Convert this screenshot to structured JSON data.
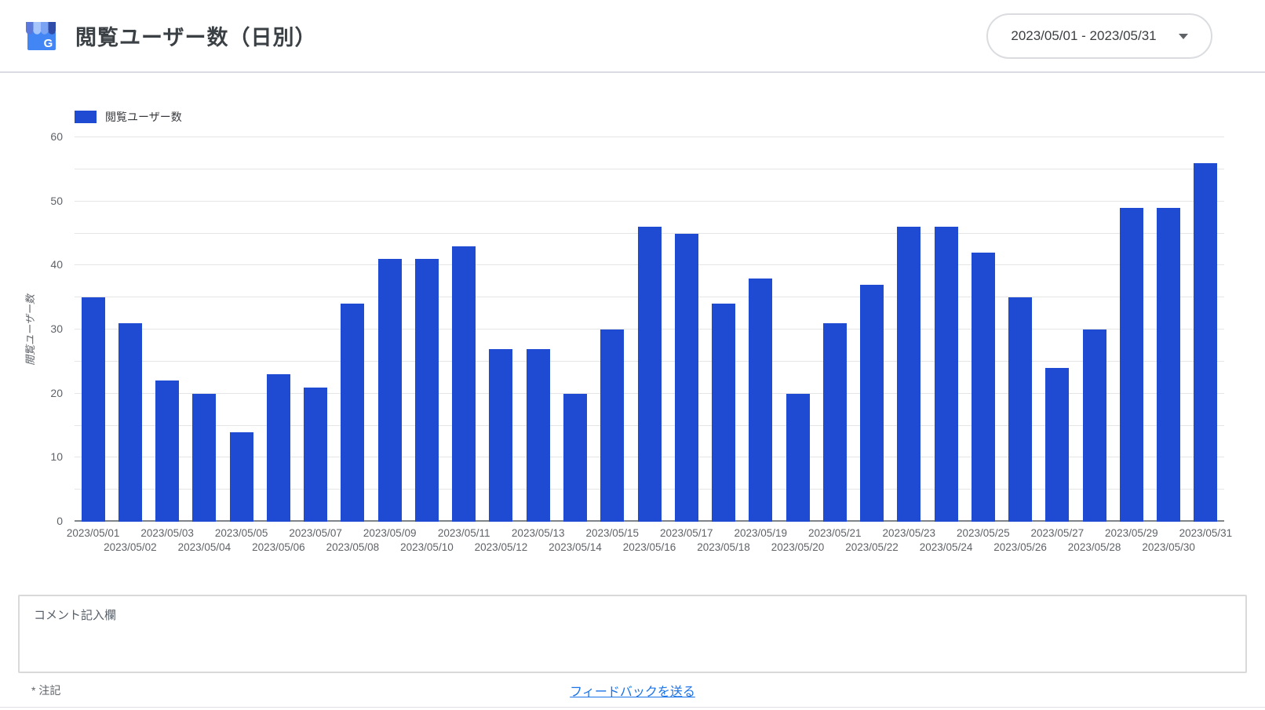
{
  "header": {
    "title": "閲覧ユーザー数（日別）",
    "logo_icon": "google-business-profile-icon",
    "date_range_value": "2023/05/01 - 2023/05/31"
  },
  "chart_data": {
    "type": "bar",
    "title": "閲覧ユーザー数（日別）",
    "legend": [
      {
        "label": "閲覧ユーザー数",
        "color": "#1E4BD2"
      }
    ],
    "ylabel": "閲覧ユーザー数",
    "xlabel": "",
    "ylim": [
      0,
      60
    ],
    "y_ticks": [
      0,
      10,
      20,
      30,
      40,
      50,
      60
    ],
    "grid_minor_step": 5,
    "grid": true,
    "legend_position": "top-left",
    "bar_color": "#1E4BD2",
    "categories": [
      "2023/05/01",
      "2023/05/02",
      "2023/05/03",
      "2023/05/04",
      "2023/05/05",
      "2023/05/06",
      "2023/05/07",
      "2023/05/08",
      "2023/05/09",
      "2023/05/10",
      "2023/05/11",
      "2023/05/12",
      "2023/05/13",
      "2023/05/14",
      "2023/05/15",
      "2023/05/16",
      "2023/05/17",
      "2023/05/18",
      "2023/05/19",
      "2023/05/20",
      "2023/05/21",
      "2023/05/22",
      "2023/05/23",
      "2023/05/24",
      "2023/05/25",
      "2023/05/26",
      "2023/05/27",
      "2023/05/28",
      "2023/05/29",
      "2023/05/30",
      "2023/05/31"
    ],
    "values": [
      35,
      31,
      22,
      20,
      14,
      23,
      21,
      34,
      41,
      41,
      43,
      27,
      27,
      20,
      30,
      46,
      45,
      34,
      38,
      20,
      31,
      37,
      46,
      46,
      42,
      35,
      24,
      30,
      49,
      49,
      56
    ]
  },
  "comment_box": {
    "label": "コメント記入欄"
  },
  "footer": {
    "note": "* 注記",
    "feedback_link": "フィードバックを送る"
  },
  "colors": {
    "bar": "#1E4BD2",
    "link": "#1a73e8",
    "axis_text": "#5f6368",
    "grid": "#e5e5e5"
  }
}
